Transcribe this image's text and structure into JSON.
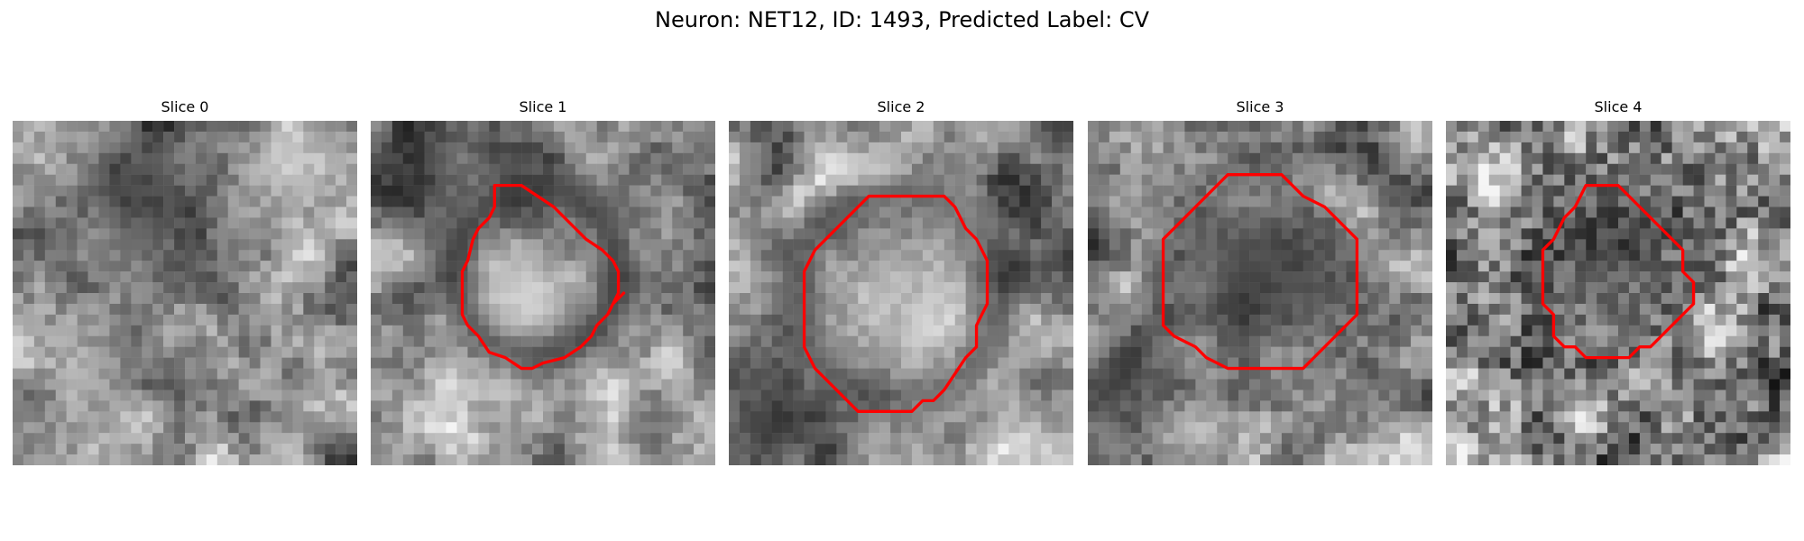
{
  "figure": {
    "title": "Neuron: NET12, ID: 1493, Predicted Label: CV",
    "contour_color": "#ff0000"
  },
  "slices": [
    {
      "title": "Slice 0",
      "has_contour": false
    },
    {
      "title": "Slice 1",
      "has_contour": true
    },
    {
      "title": "Slice 2",
      "has_contour": true
    },
    {
      "title": "Slice 3",
      "has_contour": true
    },
    {
      "title": "Slice 4",
      "has_contour": true
    }
  ]
}
